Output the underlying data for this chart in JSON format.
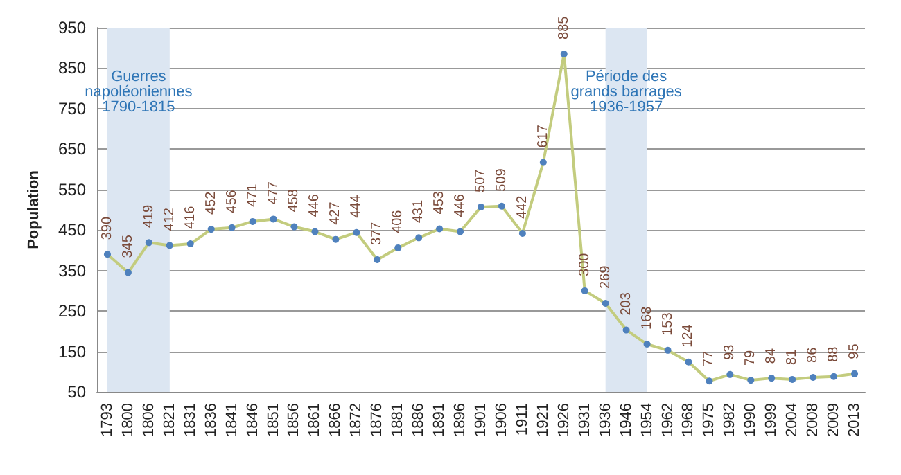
{
  "chart_data": {
    "type": "line",
    "ylabel": "Population",
    "categories": [
      "1793",
      "1800",
      "1806",
      "1821",
      "1831",
      "1836",
      "1841",
      "1846",
      "1851",
      "1856",
      "1861",
      "1866",
      "1872",
      "1876",
      "1881",
      "1886",
      "1891",
      "1896",
      "1901",
      "1906",
      "1911",
      "1921",
      "1926",
      "1931",
      "1936",
      "1946",
      "1954",
      "1962",
      "1968",
      "1975",
      "1982",
      "1990",
      "1999",
      "2004",
      "2008",
      "2009",
      "2013"
    ],
    "series": [
      {
        "color": "#4f81bd",
        "values": [
          390,
          345,
          419,
          412,
          416,
          452,
          456,
          471,
          477,
          458,
          446,
          427,
          444,
          377,
          406,
          431,
          453,
          446,
          507,
          509,
          442,
          617,
          885,
          300,
          269,
          203,
          168,
          153,
          124,
          77,
          93,
          79,
          84,
          81,
          86,
          88,
          95
        ]
      }
    ],
    "ylim": [
      50,
      950
    ],
    "yticks": [
      50,
      150,
      250,
      350,
      450,
      550,
      650,
      750,
      850,
      950
    ],
    "grid": "y",
    "marker": "circle",
    "data_labels": true,
    "bands": [
      {
        "axis": "x",
        "from": "1793",
        "to": "1821",
        "label": "Guerres\nnapoléoniennes\n1790-1815",
        "color": "#dce6f2"
      },
      {
        "axis": "x",
        "from": "1936",
        "to": "1954",
        "label": "Période des\ngrands barrages\n1936-1957",
        "color": "#dce6f2"
      }
    ]
  }
}
